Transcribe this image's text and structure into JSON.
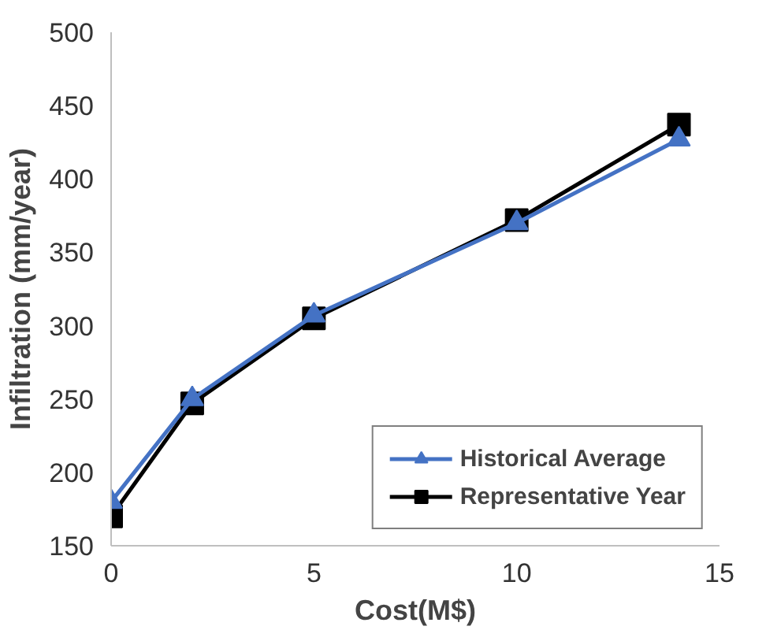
{
  "chart_data": {
    "type": "line",
    "xlabel": "Cost(M$)",
    "ylabel": "Infiltration (mm/year)",
    "x": [
      0,
      2,
      5,
      10,
      14
    ],
    "series": [
      {
        "name": "Historical Average",
        "color": "#4472c4",
        "values": [
          180,
          250,
          307,
          370,
          427
        ],
        "marker": "triangle"
      },
      {
        "name": "Representative Year",
        "color": "#000000",
        "values": [
          170,
          247,
          305,
          372,
          437
        ],
        "marker": "square"
      }
    ],
    "xlim": [
      0,
      15
    ],
    "xticks": [
      0,
      5,
      10,
      15
    ],
    "ylim": [
      150,
      500
    ],
    "yticks": [
      150,
      200,
      250,
      300,
      350,
      400,
      450,
      500
    ],
    "grid": false,
    "legend": "bottom right"
  }
}
